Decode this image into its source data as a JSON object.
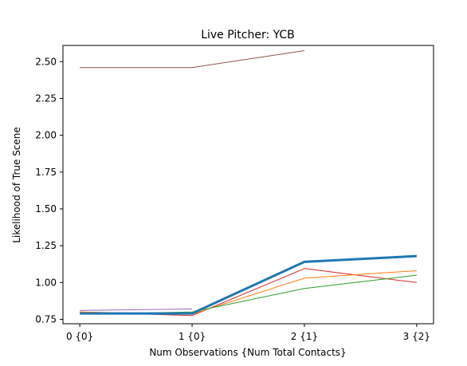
{
  "chart_data": {
    "type": "line",
    "title": "Live Pitcher: YCB",
    "xlabel": "Num Observations {Num Total Contacts}",
    "ylabel": "Likelihood of True Scene",
    "categories": [
      "0 {0}",
      "1 {0}",
      "2 {1}",
      "3 {2}"
    ],
    "x": [
      0,
      1,
      2,
      3
    ],
    "xlim": [
      -0.15,
      3.15
    ],
    "ylim": [
      0.72,
      2.61
    ],
    "yticks": [
      0.75,
      1.0,
      1.25,
      1.5,
      1.75,
      2.0,
      2.25,
      2.5
    ],
    "ytick_labels": [
      "0.75",
      "1.00",
      "1.25",
      "1.50",
      "1.75",
      "2.00",
      "2.25",
      "2.50"
    ],
    "grid": false,
    "series": [
      {
        "values": [
          2.46,
          2.46,
          2.575,
          null
        ],
        "color": "#8c564b",
        "width": 1
      },
      {
        "values": [
          0.81,
          0.82,
          null,
          null
        ],
        "color": "#9467bd",
        "width": 1
      },
      {
        "values": [
          0.8,
          0.775,
          1.095,
          1.0
        ],
        "color": "#d62728",
        "width": 1
      },
      {
        "values": [
          0.8,
          0.785,
          1.03,
          1.08
        ],
        "color": "#ff7f0e",
        "width": 1
      },
      {
        "values": [
          0.785,
          0.8,
          0.96,
          1.05
        ],
        "color": "#2ca02c",
        "width": 1
      },
      {
        "values": [
          0.79,
          0.79,
          1.14,
          1.18
        ],
        "color": "#1f77b4",
        "width": 3
      }
    ]
  }
}
